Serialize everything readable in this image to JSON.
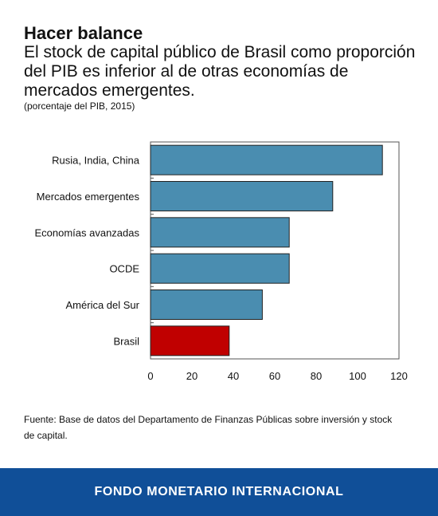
{
  "chart_data": {
    "type": "bar",
    "orientation": "horizontal",
    "title": "Hacer balance",
    "subtitle": "El stock de capital público de Brasil como proporción del PIB es inferior al de otras economías de mercados emergentes.",
    "unit_note": "(porcentaje del PIB, 2015)",
    "categories": [
      "Rusia, India, China",
      "Mercados emergentes",
      "Economías avanzadas",
      "OCDE",
      "América del Sur",
      "Brasil"
    ],
    "values": [
      112,
      88,
      67,
      67,
      54,
      38
    ],
    "bar_colors": [
      "#4a8db0",
      "#4a8db0",
      "#4a8db0",
      "#4a8db0",
      "#4a8db0",
      "#c00000"
    ],
    "xlim": [
      0,
      120
    ],
    "xticks": [
      0,
      20,
      40,
      60,
      80,
      100,
      120
    ],
    "grid": false,
    "xlabel": "",
    "ylabel": ""
  },
  "source": "Fuente: Base de datos del Departamento de Finanzas Públicas sobre inversión y stock de capital.",
  "footer": {
    "organization": "FONDO MONETARIO INTERNACIONAL",
    "background_color": "#104f98"
  }
}
